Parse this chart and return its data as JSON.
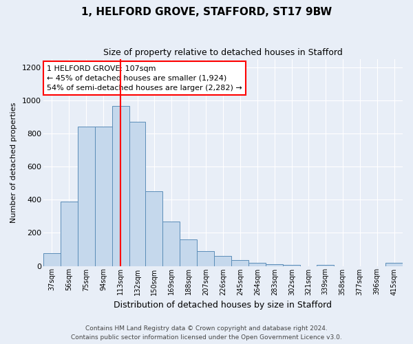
{
  "title": "1, HELFORD GROVE, STAFFORD, ST17 9BW",
  "subtitle": "Size of property relative to detached houses in Stafford",
  "xlabel": "Distribution of detached houses by size in Stafford",
  "ylabel": "Number of detached properties",
  "footnote1": "Contains HM Land Registry data © Crown copyright and database right 2024.",
  "footnote2": "Contains public sector information licensed under the Open Government Licence v3.0.",
  "annotation_line1": "1 HELFORD GROVE: 107sqm",
  "annotation_line2": "← 45% of detached houses are smaller (1,924)",
  "annotation_line3": "54% of semi-detached houses are larger (2,282) →",
  "bar_color": "#c5d8ec",
  "bar_edge_color": "#5b8db8",
  "vline_x": 113,
  "vline_color": "red",
  "categories": [
    "37sqm",
    "56sqm",
    "75sqm",
    "94sqm",
    "113sqm",
    "132sqm",
    "150sqm",
    "169sqm",
    "188sqm",
    "207sqm",
    "226sqm",
    "245sqm",
    "264sqm",
    "283sqm",
    "302sqm",
    "321sqm",
    "339sqm",
    "358sqm",
    "377sqm",
    "396sqm",
    "415sqm"
  ],
  "bin_edges": [
    28,
    47,
    66,
    85,
    104,
    123,
    141,
    160,
    179,
    198,
    217,
    236,
    255,
    274,
    293,
    312,
    330,
    349,
    368,
    387,
    406,
    425
  ],
  "values": [
    75,
    390,
    840,
    840,
    965,
    870,
    450,
    270,
    160,
    90,
    60,
    35,
    20,
    10,
    5,
    0,
    5,
    0,
    0,
    0,
    20
  ],
  "ylim": [
    0,
    1250
  ],
  "yticks": [
    0,
    200,
    400,
    600,
    800,
    1000,
    1200
  ],
  "bg_color": "#e8eef7",
  "plot_bg_color": "#e8eef7",
  "grid_color": "white",
  "title_fontsize": 11,
  "subtitle_fontsize": 9
}
